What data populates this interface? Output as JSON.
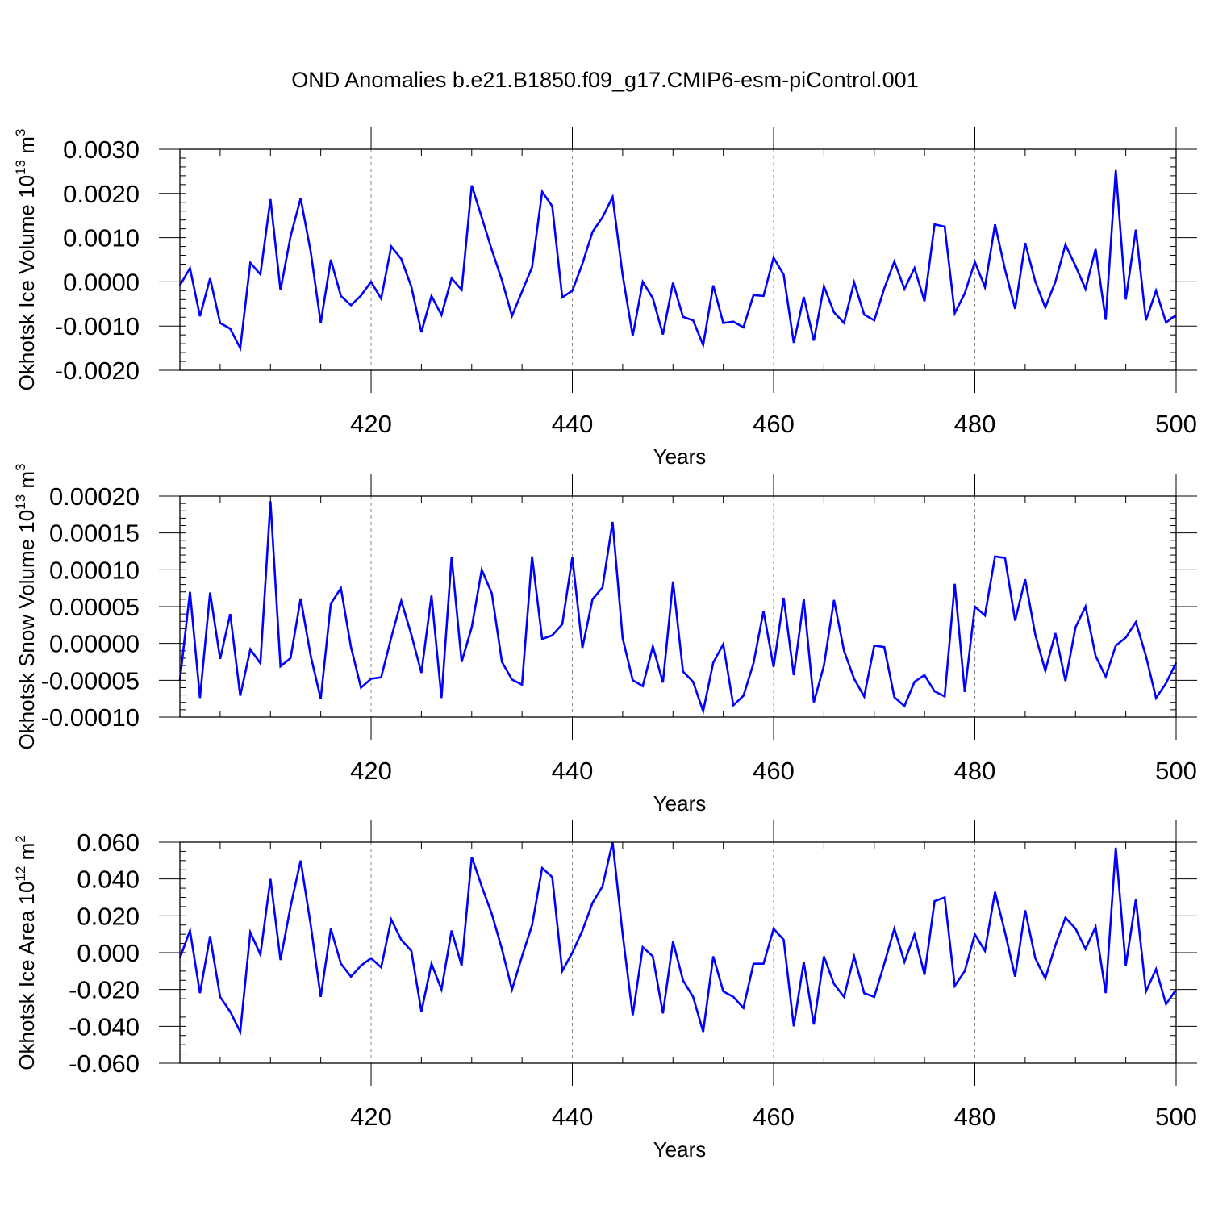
{
  "figure": {
    "title": "OND Anomalies b.e21.B1850.f09_g17.CMIP6-esm-piControl.001",
    "line_color": "#0000ff"
  },
  "chart_data": [
    {
      "type": "line",
      "title": "",
      "xlabel": "Years",
      "ylabel_main": "Okhotsk Ice Volume 10",
      "ylabel_exp": "13",
      "ylabel_unit": "m",
      "ylabel_unit_exp": "3",
      "xlim": [
        401,
        500
      ],
      "ylim": [
        -0.002,
        0.003
      ],
      "yticks": [
        -0.002,
        -0.001,
        0.0,
        0.001,
        0.002,
        0.003
      ],
      "ytick_labels": [
        "-0.0020",
        "-0.0010",
        "0.0000",
        "0.0010",
        "0.0020",
        "0.0030"
      ],
      "yminor_step": 0.0002,
      "xticks": [
        420,
        440,
        460,
        480,
        500
      ],
      "xtick_labels": [
        "420",
        "440",
        "460",
        "480",
        "500"
      ],
      "x_start": 401,
      "series": [
        {
          "name": "Okhotsk Ice Volume",
          "values": [
            -8e-05,
            0.00031,
            -0.00078,
            8e-05,
            -0.00093,
            -0.00106,
            -0.0015,
            0.00043,
            0.00017,
            0.00187,
            -0.00019,
            0.00103,
            0.00189,
            0.00068,
            -0.00093,
            0.0005,
            -0.00032,
            -0.00053,
            -0.00031,
            0.0,
            -0.00038,
            0.0008,
            0.00052,
            -0.00011,
            -0.00114,
            -0.00032,
            -0.00075,
            8e-05,
            -0.00018,
            0.00218,
            0.00146,
            0.00072,
            4e-05,
            -0.00077,
            -0.00022,
            0.00033,
            0.00204,
            0.00171,
            -0.00035,
            -0.0002,
            0.00041,
            0.00113,
            0.00146,
            0.00192,
            0.00015,
            -0.00122,
            0.0,
            -0.00037,
            -0.00119,
            -2e-05,
            -0.00079,
            -0.00087,
            -0.00143,
            -8e-05,
            -0.00093,
            -0.0009,
            -0.00103,
            -0.0003,
            -0.00032,
            0.00055,
            0.00016,
            -0.00138,
            -0.00034,
            -0.00133,
            -0.0001,
            -0.00069,
            -0.00093,
            -1e-05,
            -0.00074,
            -0.00087,
            -0.00015,
            0.00046,
            -0.00016,
            0.00031,
            -0.00044,
            0.0013,
            0.00125,
            -0.00071,
            -0.00026,
            0.00045,
            -0.00012,
            0.0013,
            0.00028,
            -0.00061,
            0.00088,
            1e-05,
            -0.00058,
            0.0,
            0.00084,
            0.00036,
            -0.00016,
            0.00074,
            -0.00086,
            0.00253,
            -0.0004,
            0.00118,
            -0.00087,
            -0.0002,
            -0.00092,
            -0.00075
          ]
        }
      ]
    },
    {
      "type": "line",
      "title": "",
      "xlabel": "Years",
      "ylabel_main": "Okhotsk Snow Volume 10",
      "ylabel_exp": "13",
      "ylabel_unit": "m",
      "ylabel_unit_exp": "3",
      "xlim": [
        401,
        500
      ],
      "ylim": [
        -0.0001,
        0.0002
      ],
      "yticks": [
        -0.0001,
        -5e-05,
        0.0,
        5e-05,
        0.0001,
        0.00015,
        0.0002
      ],
      "ytick_labels": [
        "-0.00010",
        "-0.00005",
        "0.00000",
        "0.00005",
        "0.00010",
        "0.00015",
        "0.00020"
      ],
      "yminor_step": 1e-05,
      "xticks": [
        420,
        440,
        460,
        480,
        500
      ],
      "xtick_labels": [
        "420",
        "440",
        "460",
        "480",
        "500"
      ],
      "x_start": 401,
      "series": [
        {
          "name": "Okhotsk Snow Volume",
          "values": [
            -5e-05,
            7e-05,
            -7.4e-05,
            6.9e-05,
            -2.1e-05,
            4e-05,
            -7.1e-05,
            -8e-06,
            -2.7e-05,
            0.000193,
            -3.1e-05,
            -2e-05,
            6.1e-05,
            -1.7e-05,
            -7.5e-05,
            5.4e-05,
            7.5e-05,
            -5e-06,
            -6e-05,
            -4.8e-05,
            -4.6e-05,
            8e-06,
            5.8e-05,
            1.2e-05,
            -4e-05,
            6.5e-05,
            -7.4e-05,
            0.000117,
            -2.5e-05,
            2.2e-05,
            0.0001,
            6.8e-05,
            -2.5e-05,
            -4.9e-05,
            -5.6e-05,
            0.000118,
            6e-06,
            1.1e-05,
            2.6e-05,
            0.000117,
            -6e-06,
            6e-05,
            7.6e-05,
            0.000165,
            7e-06,
            -5e-05,
            -5.8e-05,
            -4e-06,
            -5.3e-05,
            8.4e-05,
            -3.8e-05,
            -5.2e-05,
            -9.2e-05,
            -2.6e-05,
            -1e-06,
            -8.4e-05,
            -7.1e-05,
            -2.7e-05,
            4.4e-05,
            -3.2e-05,
            6.2e-05,
            -4.3e-05,
            6e-05,
            -8e-05,
            -3e-05,
            5.9e-05,
            -1e-05,
            -4.8e-05,
            -7.2e-05,
            -3e-06,
            -5e-06,
            -7.3e-05,
            -8.5e-05,
            -5.2e-05,
            -4.3e-05,
            -6.5e-05,
            -7.2e-05,
            8.1e-05,
            -6.6e-05,
            5e-05,
            3.8e-05,
            0.000118,
            0.000116,
            3.1e-05,
            8.7e-05,
            1.2e-05,
            -3.7e-05,
            1.4e-05,
            -5.1e-05,
            2.2e-05,
            5e-05,
            -1.7e-05,
            -4.5e-05,
            -3e-06,
            8e-06,
            2.9e-05,
            -1.7e-05,
            -7.4e-05,
            -5.4e-05,
            -2.6e-05
          ]
        }
      ]
    },
    {
      "type": "line",
      "title": "",
      "xlabel": "Years",
      "ylabel_main": "Okhotsk Ice Area 10",
      "ylabel_exp": "12",
      "ylabel_unit": "m",
      "ylabel_unit_exp": "2",
      "xlim": [
        401,
        500
      ],
      "ylim": [
        -0.06,
        0.06
      ],
      "yticks": [
        -0.06,
        -0.04,
        -0.02,
        0.0,
        0.02,
        0.04,
        0.06
      ],
      "ytick_labels": [
        "-0.060",
        "-0.040",
        "-0.020",
        "0.000",
        "0.020",
        "0.040",
        "0.060"
      ],
      "yminor_step": 0.005,
      "xticks": [
        420,
        440,
        460,
        480,
        500
      ],
      "xtick_labels": [
        "420",
        "440",
        "460",
        "480",
        "500"
      ],
      "x_start": 401,
      "series": [
        {
          "name": "Okhotsk Ice Area",
          "values": [
            -0.003,
            0.012,
            -0.022,
            0.009,
            -0.024,
            -0.032,
            -0.043,
            0.011,
            -0.001,
            0.04,
            -0.004,
            0.025,
            0.05,
            0.015,
            -0.024,
            0.013,
            -0.006,
            -0.013,
            -0.007,
            -0.003,
            -0.008,
            0.018,
            0.007,
            0.001,
            -0.032,
            -0.006,
            -0.02,
            0.012,
            -0.007,
            0.052,
            0.036,
            0.021,
            0.002,
            -0.02,
            -0.002,
            0.015,
            0.046,
            0.041,
            -0.01,
            0.0,
            0.012,
            0.027,
            0.036,
            0.06,
            0.01,
            -0.034,
            0.003,
            -0.002,
            -0.033,
            0.006,
            -0.015,
            -0.024,
            -0.043,
            -0.002,
            -0.021,
            -0.024,
            -0.03,
            -0.006,
            -0.006,
            0.013,
            0.007,
            -0.04,
            -0.005,
            -0.039,
            -0.002,
            -0.017,
            -0.024,
            -0.002,
            -0.022,
            -0.024,
            -0.006,
            0.013,
            -0.005,
            0.01,
            -0.012,
            0.028,
            0.03,
            -0.018,
            -0.01,
            0.01,
            0.001,
            0.033,
            0.011,
            -0.013,
            0.023,
            -0.003,
            -0.014,
            0.004,
            0.019,
            0.013,
            0.002,
            0.014,
            -0.022,
            0.057,
            -0.007,
            0.029,
            -0.021,
            -0.009,
            -0.028,
            -0.02
          ]
        }
      ]
    }
  ]
}
